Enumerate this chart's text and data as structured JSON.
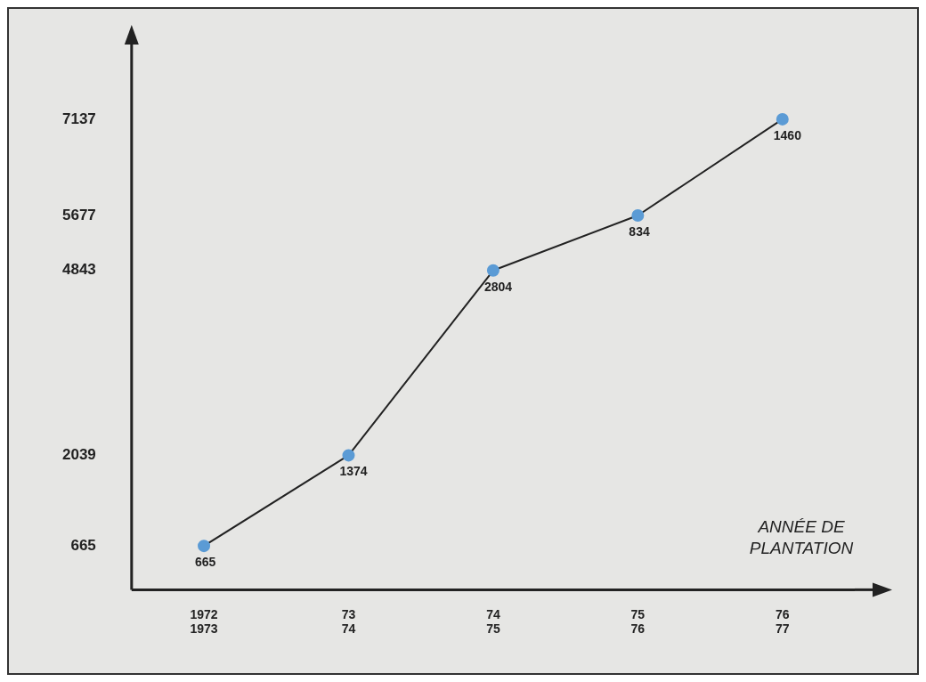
{
  "chart_data": {
    "type": "line",
    "xlabel": "ANNÉE DE PLANTATION",
    "categories": [
      "1972\n1973",
      "73\n74",
      "74\n75",
      "75\n76",
      "76\n77"
    ],
    "series": [
      {
        "color": "#5b9bd5",
        "values": [
          665,
          2039,
          4843,
          5677,
          7137
        ]
      }
    ],
    "annotations": [
      {
        "text": "665",
        "x": "1972\n1973",
        "y": 665
      },
      {
        "text": "1374",
        "x": "73\n74",
        "y": 2039
      },
      {
        "text": "2804",
        "x": "74\n75",
        "y": 4843
      },
      {
        "text": "834",
        "x": "75\n76",
        "y": 5677
      },
      {
        "text": "1460",
        "x": "76\n77",
        "y": 7137
      }
    ],
    "ylim": [
      0,
      8000
    ],
    "yticks": [
      665,
      2039,
      4843,
      5677,
      7137
    ],
    "grid": false,
    "legend": false,
    "marker": "circle",
    "line_style": "solid"
  }
}
